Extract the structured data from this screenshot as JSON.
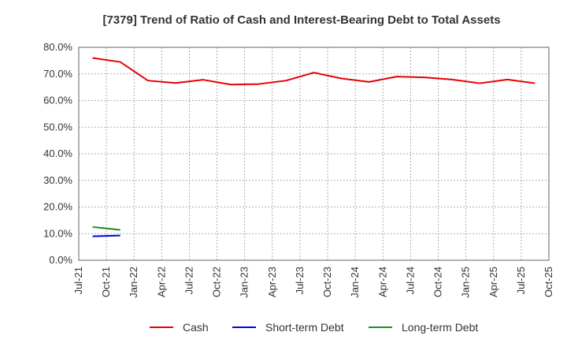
{
  "chart_data": {
    "type": "line",
    "title": "[7379]  Trend of Ratio of Cash and Interest-Bearing Debt to Total Assets",
    "xlabel": "",
    "ylabel": "",
    "ylim": [
      0,
      80
    ],
    "y_ticks": [
      0,
      10,
      20,
      30,
      40,
      50,
      60,
      70,
      80
    ],
    "y_tick_labels": [
      "0.0%",
      "10.0%",
      "20.0%",
      "30.0%",
      "40.0%",
      "50.0%",
      "60.0%",
      "70.0%",
      "80.0%"
    ],
    "x_tick_labels": [
      "Jul-21",
      "Oct-21",
      "Jan-22",
      "Apr-22",
      "Jul-22",
      "Oct-22",
      "Jan-23",
      "Apr-23",
      "Jul-23",
      "Oct-23",
      "Jan-24",
      "Apr-24",
      "Jul-24",
      "Oct-24",
      "Jan-25",
      "Apr-25",
      "Jul-25",
      "Oct-25"
    ],
    "grid": true,
    "legend_position": "bottom",
    "series": [
      {
        "name": "Cash",
        "color": "#e60000",
        "x_index": [
          0.5,
          1.5,
          2.5,
          3.5,
          4.5,
          5.5,
          6.5,
          7.5,
          8.5,
          9.5,
          10.5,
          11.5,
          12.5,
          13.5,
          14.5,
          15.5,
          16.5
        ],
        "values": [
          76.0,
          74.5,
          67.5,
          66.6,
          67.8,
          66.0,
          66.2,
          67.5,
          70.5,
          68.3,
          67.0,
          69.0,
          68.7,
          67.9,
          66.5,
          67.9,
          66.5
        ]
      },
      {
        "name": "Short-term Debt",
        "color": "#0000e6",
        "x_index": [
          0.5,
          1.5
        ],
        "values": [
          9.0,
          9.3
        ]
      },
      {
        "name": "Long-term Debt",
        "color": "#238c23",
        "x_index": [
          0.5,
          1.5
        ],
        "values": [
          12.5,
          11.4
        ]
      }
    ]
  }
}
